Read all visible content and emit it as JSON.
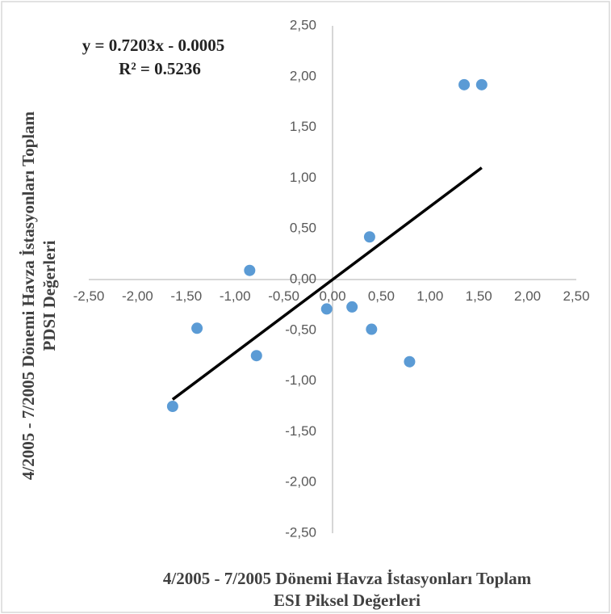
{
  "chart_data": {
    "type": "scatter",
    "title": "",
    "xlabel_lines": [
      "4/2005 - 7/2005 Dönemi Havza İstasyonları Toplam",
      "ESI Piksel Değerleri"
    ],
    "ylabel_lines": [
      "4/2005 - 7/2005 Dönemi Havza İstasyonları Toplam",
      "PDSI Değerleri"
    ],
    "xlim": [
      -2.5,
      2.5
    ],
    "ylim": [
      -2.5,
      2.5
    ],
    "x_ticks": [
      "-2,50",
      "-2,00",
      "-1,50",
      "-1,00",
      "-0,50",
      "0,00",
      "0,50",
      "1,00",
      "1,50",
      "2,00",
      "2,50"
    ],
    "y_ticks": [
      "2,50",
      "2,00",
      "1,50",
      "1,00",
      "0,50",
      "0,00",
      "-0,50",
      "-1,00",
      "-1,50",
      "-2,00",
      "-2,50"
    ],
    "points": [
      {
        "x": -1.64,
        "y": -1.25
      },
      {
        "x": -1.39,
        "y": -0.48
      },
      {
        "x": -0.85,
        "y": 0.09
      },
      {
        "x": -0.78,
        "y": -0.75
      },
      {
        "x": -0.06,
        "y": -0.29
      },
      {
        "x": 0.2,
        "y": -0.27
      },
      {
        "x": 0.38,
        "y": 0.42
      },
      {
        "x": 0.4,
        "y": -0.49
      },
      {
        "x": 0.79,
        "y": -0.81
      },
      {
        "x": 1.35,
        "y": 1.92
      },
      {
        "x": 1.53,
        "y": 1.92
      }
    ],
    "trendline": {
      "slope": 0.7203,
      "intercept": -0.0005,
      "x_start": -1.64,
      "x_end": 1.53
    },
    "equation": "y = 0.7203x - 0.0005",
    "r_squared": "R² = 0.5236",
    "grid": false
  },
  "colors": {
    "point": "#5B9BD5",
    "trendline": "#000000",
    "axis": "#BFBFBF",
    "border": "#D9D9D9"
  }
}
